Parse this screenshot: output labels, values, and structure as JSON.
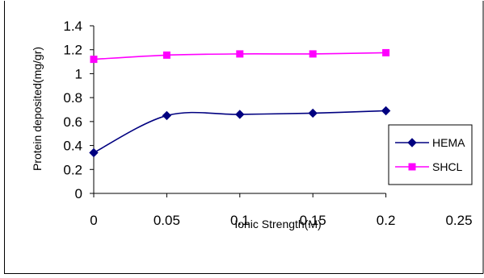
{
  "chart_data": {
    "type": "line",
    "xlabel": "Ionic Strength(M)",
    "ylabel": "Protein deposited(mg/gr)",
    "xlim": [
      0,
      0.25
    ],
    "ylim": [
      0,
      1.4
    ],
    "x_ticks": [
      "0",
      "0.05",
      "0.1",
      "0.15",
      "0.2",
      "0.25"
    ],
    "y_ticks": [
      "0",
      "0.2",
      "0.4",
      "0.6",
      "0.8",
      "1",
      "1.2",
      "1.4"
    ],
    "grid": false,
    "legend_position": "right",
    "series": [
      {
        "name": "HEMA",
        "color": "#000080",
        "marker": "diamond",
        "x": [
          0,
          0.05,
          0.1,
          0.15,
          0.2
        ],
        "y": [
          0.34,
          0.65,
          0.66,
          0.67,
          0.69
        ]
      },
      {
        "name": "SHCL",
        "color": "#FF00FF",
        "marker": "square",
        "x": [
          0,
          0.05,
          0.1,
          0.15,
          0.2
        ],
        "y": [
          1.12,
          1.155,
          1.165,
          1.165,
          1.175
        ]
      }
    ]
  }
}
